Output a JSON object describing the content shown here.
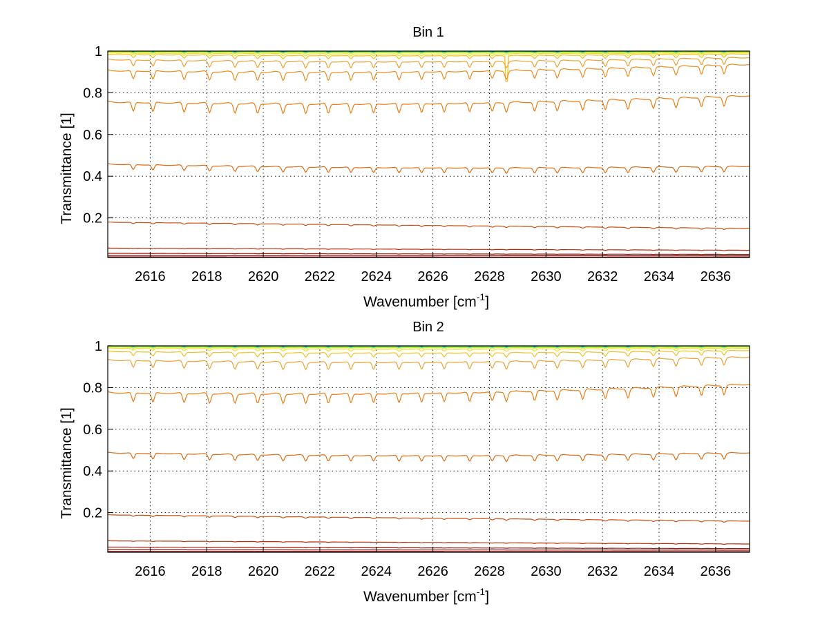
{
  "chart_data": [
    {
      "type": "line",
      "title": "Bin 1",
      "xlabel": "Wavenumber [cm",
      "xlabel_sup": "-1",
      "xlabel_end": "]",
      "ylabel": "Transmittance [1]",
      "xlim": [
        2614.5,
        2637.2
      ],
      "ylim": [
        0.01,
        1.0
      ],
      "xticks": [
        2616,
        2618,
        2620,
        2622,
        2624,
        2626,
        2628,
        2630,
        2632,
        2634,
        2636
      ],
      "yticks": [
        0.2,
        0.4,
        0.6,
        0.8,
        1
      ],
      "grid": true,
      "dip_depth_scale": 1.0,
      "glitch_x": 2628.6,
      "series": [
        {
          "start": 1.0,
          "end": 1.0,
          "color": "#1a66cc",
          "depth": 0.002
        },
        {
          "start": 0.999,
          "end": 0.999,
          "color": "#22bfbf",
          "depth": 0.003
        },
        {
          "start": 0.998,
          "end": 0.998,
          "color": "#66e066",
          "depth": 0.004
        },
        {
          "start": 0.996,
          "end": 0.996,
          "color": "#ccee22",
          "depth": 0.006
        },
        {
          "start": 0.992,
          "end": 0.993,
          "color": "#f0e020",
          "depth": 0.01
        },
        {
          "start": 0.985,
          "end": 0.988,
          "color": "#f0c020",
          "depth": 0.015
        },
        {
          "start": 0.962,
          "end": 0.972,
          "color": "#f0a030",
          "depth": 0.03
        },
        {
          "start": 0.91,
          "end": 0.94,
          "color": "#ee8a1a",
          "depth": 0.04
        },
        {
          "start": 0.76,
          "end": 0.79,
          "color": "#ee7a10",
          "depth": 0.045
        },
        {
          "start": 0.46,
          "end": 0.45,
          "color": "#e06a10",
          "depth": 0.025
        },
        {
          "start": 0.18,
          "end": 0.15,
          "color": "#cc4a10",
          "depth": 0.006
        },
        {
          "start": 0.055,
          "end": 0.045,
          "color": "#b82a08",
          "depth": 0.002
        },
        {
          "start": 0.03,
          "end": 0.025,
          "color": "#a01a08",
          "depth": 0.001
        },
        {
          "start": 0.02,
          "end": 0.018,
          "color": "#8a0a08",
          "depth": 0.0
        },
        {
          "start": 0.013,
          "end": 0.012,
          "color": "#7a0000",
          "depth": 0.0
        }
      ]
    },
    {
      "type": "line",
      "title": "Bin 2",
      "xlabel": "Wavenumber [cm",
      "xlabel_sup": "-1",
      "xlabel_end": "]",
      "ylabel": "Transmittance [1]",
      "xlim": [
        2614.5,
        2637.2
      ],
      "ylim": [
        0.01,
        1.0
      ],
      "xticks": [
        2616,
        2618,
        2620,
        2622,
        2624,
        2626,
        2628,
        2630,
        2632,
        2634,
        2636
      ],
      "yticks": [
        0.2,
        0.4,
        0.6,
        0.8,
        1
      ],
      "grid": true,
      "dip_depth_scale": 1.0,
      "series": [
        {
          "start": 1.0,
          "end": 1.0,
          "color": "#1a66cc",
          "depth": 0.002
        },
        {
          "start": 0.999,
          "end": 0.999,
          "color": "#22bfbf",
          "depth": 0.003
        },
        {
          "start": 0.998,
          "end": 0.998,
          "color": "#66e066",
          "depth": 0.004
        },
        {
          "start": 0.995,
          "end": 0.995,
          "color": "#ccee22",
          "depth": 0.006
        },
        {
          "start": 0.99,
          "end": 0.99,
          "color": "#f0e020",
          "depth": 0.01
        },
        {
          "start": 0.975,
          "end": 0.98,
          "color": "#f0c020",
          "depth": 0.02
        },
        {
          "start": 0.935,
          "end": 0.95,
          "color": "#f0a030",
          "depth": 0.035
        },
        {
          "start": 0.78,
          "end": 0.82,
          "color": "#ee7a10",
          "depth": 0.045
        },
        {
          "start": 0.49,
          "end": 0.49,
          "color": "#e06a10",
          "depth": 0.028
        },
        {
          "start": 0.19,
          "end": 0.16,
          "color": "#cc4a10",
          "depth": 0.006
        },
        {
          "start": 0.065,
          "end": 0.05,
          "color": "#b82a08",
          "depth": 0.002
        },
        {
          "start": 0.035,
          "end": 0.028,
          "color": "#a01a08",
          "depth": 0.001
        },
        {
          "start": 0.022,
          "end": 0.02,
          "color": "#8a0a08",
          "depth": 0.0
        },
        {
          "start": 0.014,
          "end": 0.013,
          "color": "#7a0000",
          "depth": 0.0
        }
      ]
    }
  ]
}
